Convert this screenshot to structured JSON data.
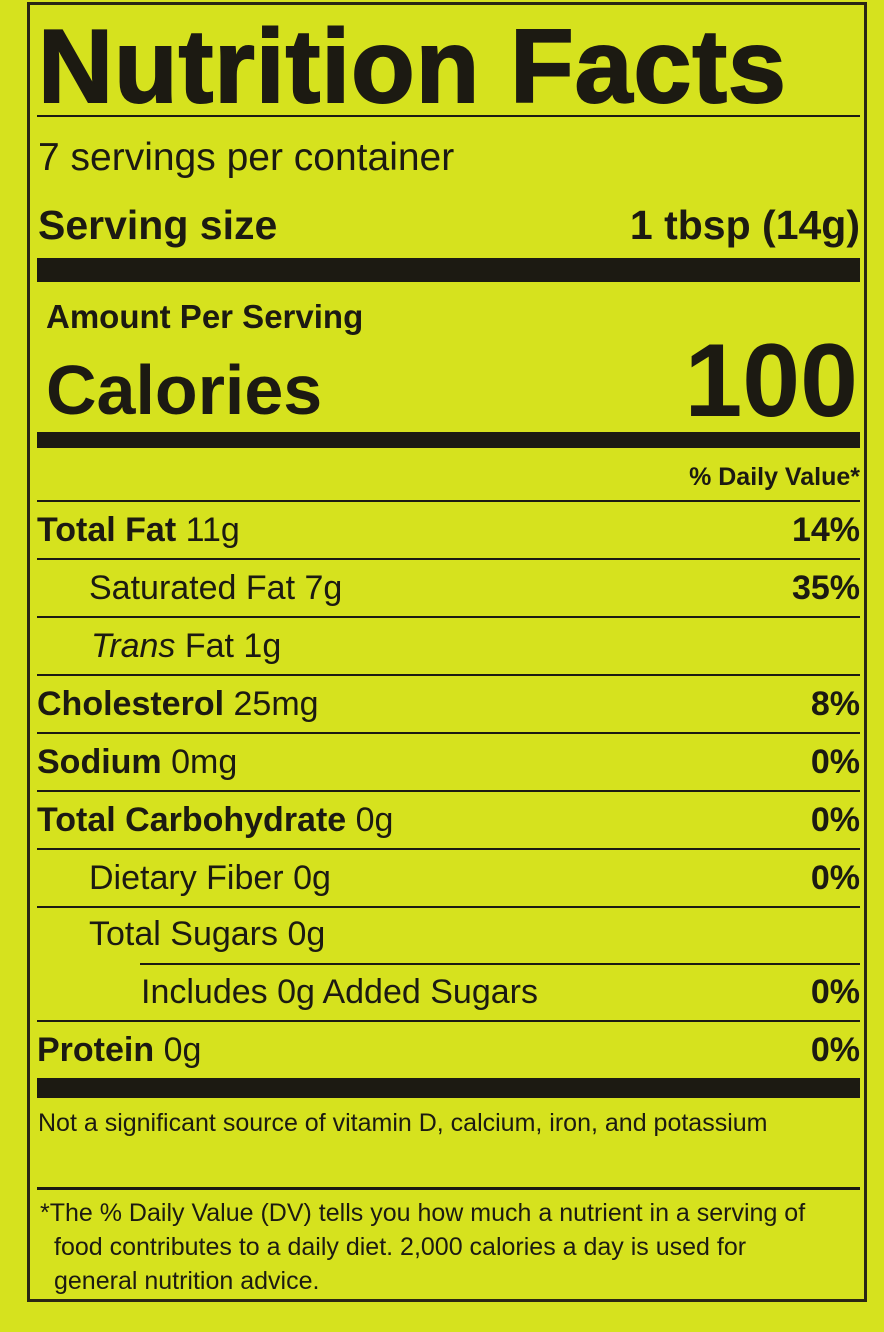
{
  "title": "Nutrition Facts",
  "servings_per_container": "7 servings per container",
  "serving_size": {
    "label": "Serving size",
    "value": "1 tbsp (14g)"
  },
  "amount_per_serving": "Amount Per Serving",
  "calories": {
    "label": "Calories",
    "value": "100"
  },
  "daily_value_header": "% Daily Value*",
  "nutrients": [
    {
      "name": "Total Fat",
      "amount": "11g",
      "dv": "14%"
    },
    {
      "name": "Saturated Fat",
      "amount": "7g",
      "dv": "35%"
    },
    {
      "name": "Trans",
      "name_rest": "Fat",
      "amount": "1g",
      "dv": ""
    },
    {
      "name": "Cholesterol",
      "amount": "25mg",
      "dv": "8%"
    },
    {
      "name": "Sodium",
      "amount": "0mg",
      "dv": "0%"
    },
    {
      "name": "Total Carbohydrate",
      "amount": "0g",
      "dv": "0%"
    },
    {
      "name": "Dietary Fiber",
      "amount": "0g",
      "dv": "0%"
    },
    {
      "name": "Total Sugars",
      "amount": "0g",
      "dv": ""
    },
    {
      "name": "Includes 0g Added Sugars",
      "amount": "",
      "dv": "0%"
    },
    {
      "name": "Protein",
      "amount": "0g",
      "dv": "0%"
    }
  ],
  "footnote_vitamins": "Not a significant source of vitamin D, calcium, iron, and potassium",
  "footnote_dv": "*The % Daily Value (DV) tells you how much a nutrient in a serving of food contributes to a daily diet. 2,000 calories a day is used for general nutrition advice.",
  "colors": {
    "background": "#d6e21e",
    "ink": "#1c1a12"
  }
}
